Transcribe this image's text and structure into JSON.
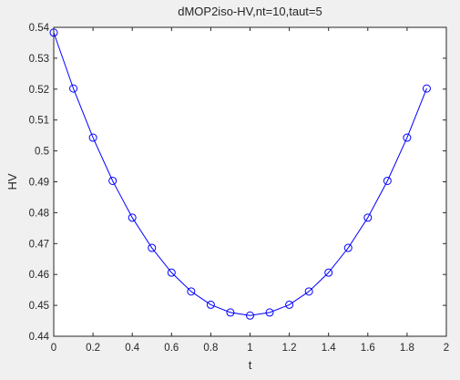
{
  "chart_data": {
    "type": "line",
    "title": "dMOP2iso-HV,nt=10,taut=5",
    "xlabel": "t",
    "ylabel": "HV",
    "xlim": [
      0,
      2
    ],
    "ylim": [
      0.44,
      0.54
    ],
    "xticks": [
      "0",
      "0.2",
      "0.4",
      "0.6",
      "0.8",
      "1",
      "1.2",
      "1.4",
      "1.6",
      "1.8",
      "2"
    ],
    "yticks": [
      "0.44",
      "0.45",
      "0.46",
      "0.47",
      "0.48",
      "0.49",
      "0.5",
      "0.51",
      "0.52",
      "0.53",
      "0.54"
    ],
    "grid": false,
    "marker": "circle",
    "series": [
      {
        "color": "#0000ff",
        "x": [
          0,
          0.1,
          0.2,
          0.3,
          0.4,
          0.5,
          0.6,
          0.7,
          0.8,
          0.9,
          1.0,
          1.1,
          1.2,
          1.3,
          1.4,
          1.5,
          1.6,
          1.7,
          1.8,
          1.9
        ],
        "y": [
          0.5383,
          0.5202,
          0.5043,
          0.4903,
          0.4784,
          0.4686,
          0.4606,
          0.4545,
          0.4502,
          0.4477,
          0.4467,
          0.4477,
          0.4502,
          0.4545,
          0.4606,
          0.4686,
          0.4784,
          0.4903,
          0.5043,
          0.5202
        ]
      }
    ]
  }
}
